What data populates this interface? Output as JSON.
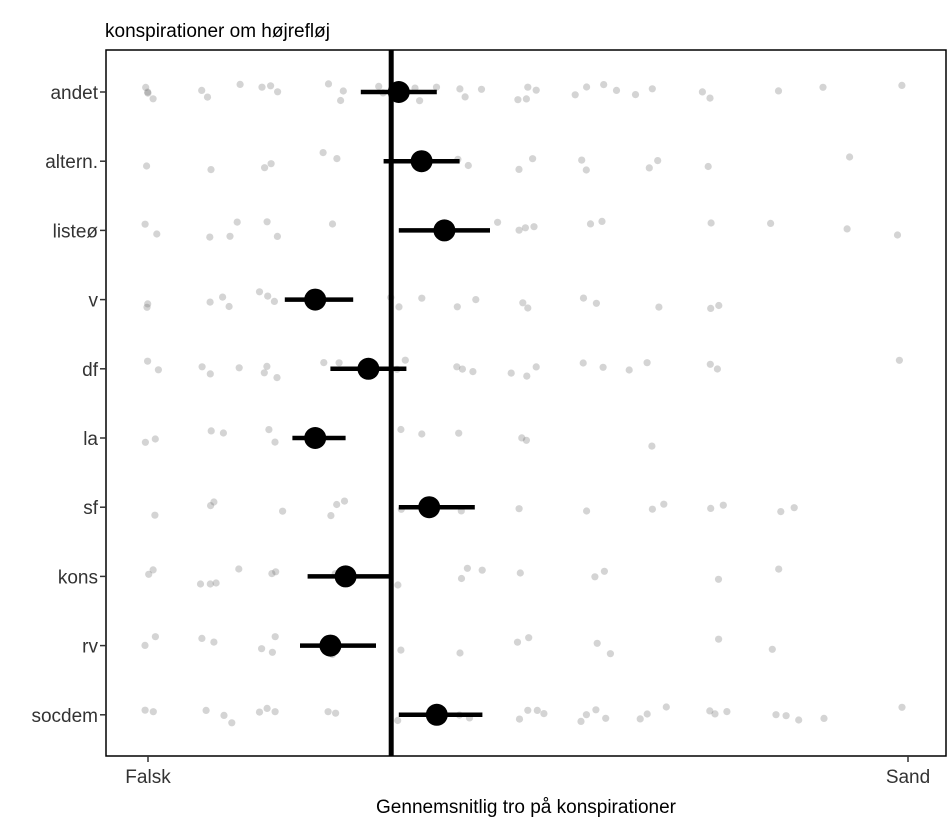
{
  "chart_data": {
    "type": "scatter",
    "title": "konspirationer om højrefløj",
    "xlabel": "Gennemsnitlig tro på konspirationer",
    "ylabel": "",
    "xlim": [
      0,
      1
    ],
    "x_tick_labels": [
      "Falsk",
      "Sand"
    ],
    "reference_line_x": 0.32,
    "categories": [
      "andet",
      "altern.",
      "listeø",
      "v",
      "df",
      "la",
      "sf",
      "kons",
      "rv",
      "socdem"
    ],
    "point_estimates": [
      {
        "category": "andet",
        "mean": 0.33,
        "ci": [
          0.28,
          0.38
        ]
      },
      {
        "category": "altern.",
        "mean": 0.36,
        "ci": [
          0.31,
          0.41
        ]
      },
      {
        "category": "listeø",
        "mean": 0.39,
        "ci": [
          0.33,
          0.45
        ]
      },
      {
        "category": "v",
        "mean": 0.22,
        "ci": [
          0.18,
          0.27
        ]
      },
      {
        "category": "df",
        "mean": 0.29,
        "ci": [
          0.24,
          0.34
        ]
      },
      {
        "category": "la",
        "mean": 0.22,
        "ci": [
          0.19,
          0.26
        ]
      },
      {
        "category": "sf",
        "mean": 0.37,
        "ci": [
          0.33,
          0.43
        ]
      },
      {
        "category": "kons",
        "mean": 0.26,
        "ci": [
          0.21,
          0.32
        ]
      },
      {
        "category": "rv",
        "mean": 0.24,
        "ci": [
          0.2,
          0.3
        ]
      },
      {
        "category": "socdem",
        "mean": 0.38,
        "ci": [
          0.33,
          0.44
        ]
      }
    ],
    "raw_points": [
      {
        "category": "andet",
        "x": [
          0.0,
          0.0,
          0.0,
          0.01,
          0.07,
          0.08,
          0.12,
          0.15,
          0.16,
          0.17,
          0.24,
          0.25,
          0.26,
          0.3,
          0.31,
          0.35,
          0.36,
          0.38,
          0.41,
          0.42,
          0.44,
          0.49,
          0.5,
          0.5,
          0.51,
          0.56,
          0.58,
          0.6,
          0.62,
          0.64,
          0.66,
          0.73,
          0.74,
          0.83,
          0.89,
          0.99
        ]
      },
      {
        "category": "altern.",
        "x": [
          0.0,
          0.08,
          0.15,
          0.16,
          0.23,
          0.25,
          0.41,
          0.42,
          0.49,
          0.51,
          0.57,
          0.58,
          0.66,
          0.67,
          0.74,
          0.92
        ]
      },
      {
        "category": "listeø",
        "x": [
          0.0,
          0.01,
          0.08,
          0.11,
          0.12,
          0.16,
          0.17,
          0.24,
          0.46,
          0.49,
          0.5,
          0.51,
          0.58,
          0.6,
          0.74,
          0.82,
          0.92,
          0.99
        ]
      },
      {
        "category": "v",
        "x": [
          0.0,
          0.0,
          0.08,
          0.1,
          0.11,
          0.15,
          0.16,
          0.17,
          0.32,
          0.33,
          0.36,
          0.41,
          0.43,
          0.49,
          0.5,
          0.57,
          0.59,
          0.67,
          0.74,
          0.75
        ]
      },
      {
        "category": "df",
        "x": [
          0.0,
          0.01,
          0.07,
          0.08,
          0.12,
          0.15,
          0.16,
          0.17,
          0.23,
          0.25,
          0.33,
          0.34,
          0.41,
          0.41,
          0.43,
          0.48,
          0.5,
          0.51,
          0.57,
          0.6,
          0.63,
          0.66,
          0.74,
          0.75,
          0.99
        ]
      },
      {
        "category": "la",
        "x": [
          0.0,
          0.01,
          0.08,
          0.1,
          0.16,
          0.17,
          0.33,
          0.36,
          0.41,
          0.49,
          0.5,
          0.66
        ]
      },
      {
        "category": "sf",
        "x": [
          0.01,
          0.08,
          0.09,
          0.18,
          0.24,
          0.25,
          0.26,
          0.33,
          0.41,
          0.49,
          0.58,
          0.66,
          0.68,
          0.74,
          0.76,
          0.83,
          0.85
        ]
      },
      {
        "category": "kons",
        "x": [
          0.0,
          0.01,
          0.07,
          0.08,
          0.09,
          0.12,
          0.16,
          0.17,
          0.25,
          0.33,
          0.41,
          0.42,
          0.44,
          0.49,
          0.59,
          0.6,
          0.75,
          0.83
        ]
      },
      {
        "category": "rv",
        "x": [
          0.0,
          0.01,
          0.07,
          0.09,
          0.15,
          0.16,
          0.17,
          0.24,
          0.33,
          0.41,
          0.49,
          0.5,
          0.59,
          0.61,
          0.75,
          0.82
        ]
      },
      {
        "category": "socdem",
        "x": [
          0.0,
          0.01,
          0.08,
          0.1,
          0.11,
          0.15,
          0.16,
          0.17,
          0.24,
          0.25,
          0.33,
          0.41,
          0.42,
          0.49,
          0.5,
          0.51,
          0.52,
          0.57,
          0.58,
          0.59,
          0.6,
          0.65,
          0.66,
          0.68,
          0.74,
          0.75,
          0.76,
          0.83,
          0.84,
          0.86,
          0.89,
          0.99
        ]
      }
    ],
    "grid": false,
    "legend": "none"
  }
}
